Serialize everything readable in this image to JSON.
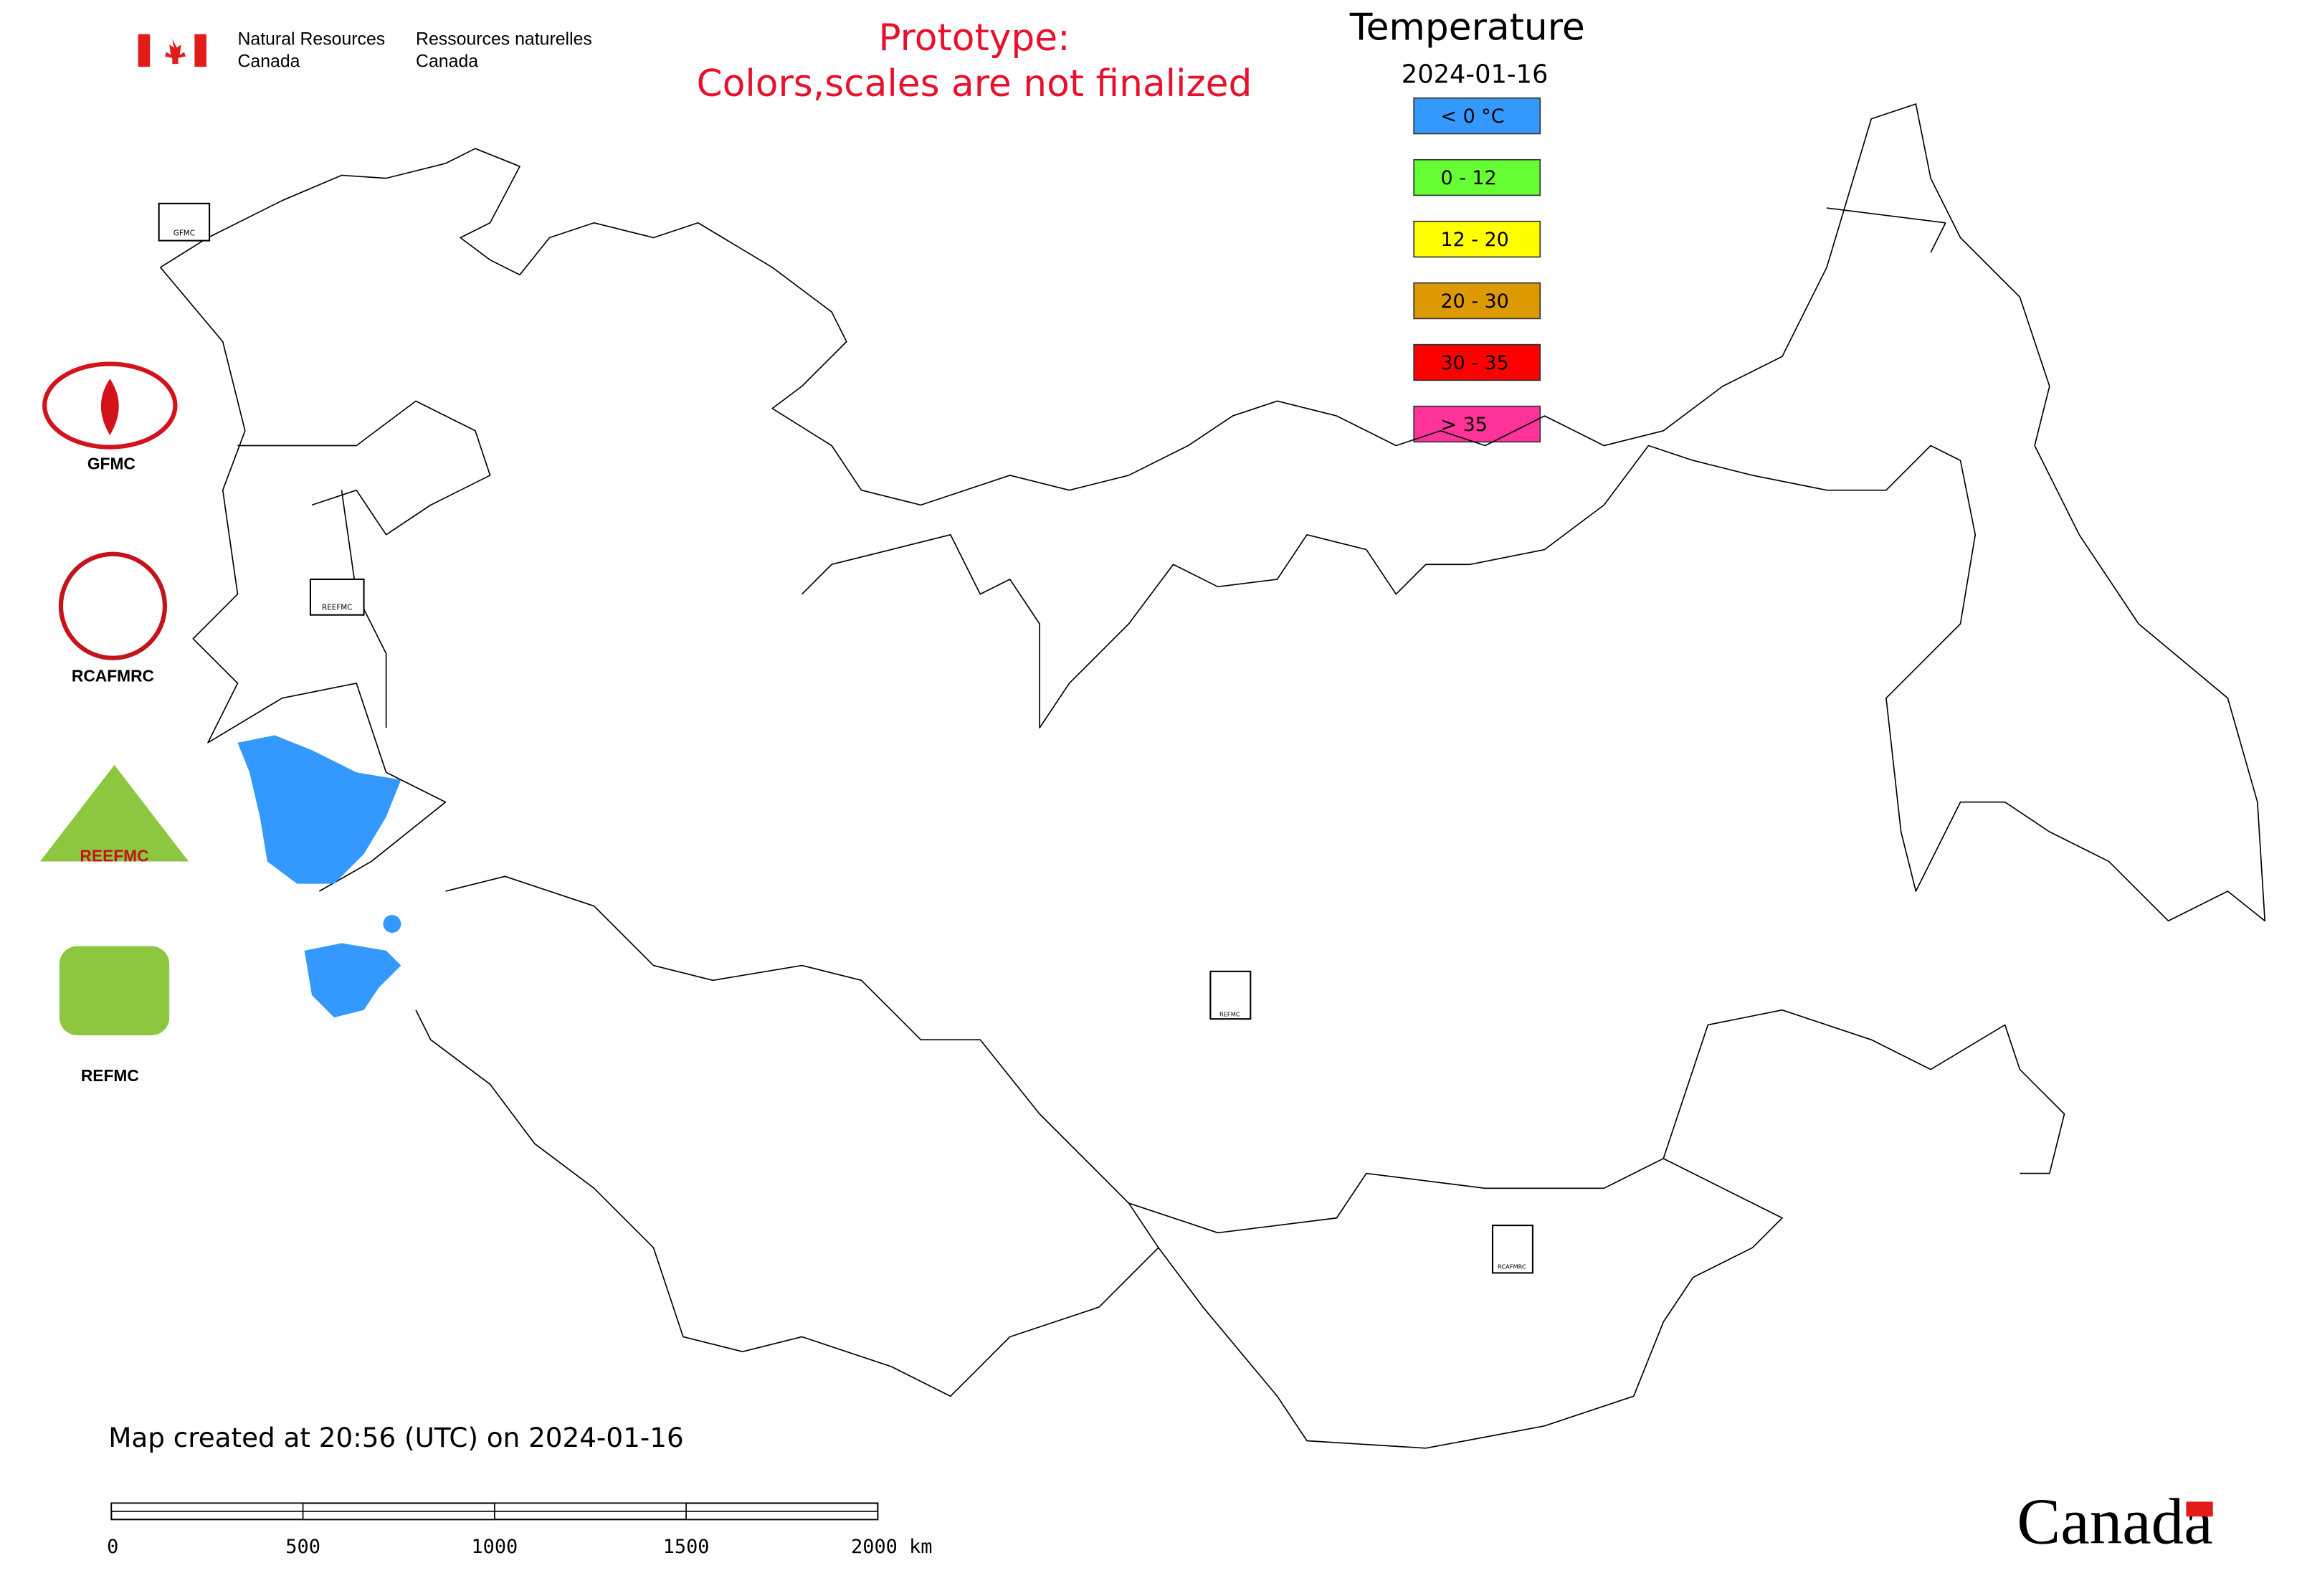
{
  "header": {
    "agency_en_line1": "Natural Resources",
    "agency_en_line2": "Canada",
    "agency_fr_line1": "Ressources naturelles",
    "agency_fr_line2": "Canada"
  },
  "prototype_notice": [
    "Prototype:",
    "Colors,scales are not finalized"
  ],
  "legend": {
    "title": "Temperature",
    "date": "2024-01-16",
    "items": [
      {
        "label": "< 0 °C",
        "color": "#3399ff"
      },
      {
        "label": "0 - 12",
        "color": "#66ff33"
      },
      {
        "label": "12 - 20",
        "color": "#ffff00"
      },
      {
        "label": "20 - 30",
        "color": "#dd9900"
      },
      {
        "label": "30 - 35",
        "color": "#ff0000"
      },
      {
        "label": "> 35",
        "color": "#ff3399"
      }
    ]
  },
  "logos": [
    {
      "label": "GFMC"
    },
    {
      "label": "RCAFMRC"
    },
    {
      "label": "REEFMC"
    },
    {
      "label": "REFMC"
    }
  ],
  "footer": {
    "map_created": "Map created at 20:56 (UTC) on 2024-01-16",
    "scale_labels": [
      "0",
      "500",
      "1000",
      "1500",
      "2000 km"
    ],
    "wordmark": "Canada"
  }
}
